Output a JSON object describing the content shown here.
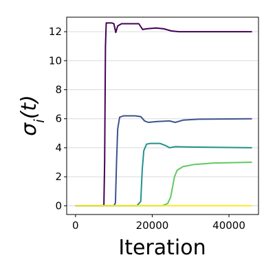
{
  "chart_data": {
    "type": "line",
    "title": "",
    "xlabel": "Iteration",
    "ylabel": "σ_i(t)",
    "xlim": [
      -2300,
      47700
    ],
    "ylim": [
      -0.6,
      13.0
    ],
    "xticks": [
      0,
      20000,
      40000
    ],
    "xtick_labels": [
      "0",
      "20000",
      "40000"
    ],
    "yticks": [
      0,
      2,
      4,
      6,
      8,
      10,
      12
    ],
    "ytick_labels": [
      "0",
      "2",
      "4",
      "6",
      "8",
      "10",
      "12"
    ],
    "grid": {
      "y": true,
      "x": false
    },
    "series": [
      {
        "color": "#440154",
        "points": [
          [
            0,
            0
          ],
          [
            7000,
            0
          ],
          [
            7400,
            0.05
          ],
          [
            7600,
            3
          ],
          [
            7800,
            11
          ],
          [
            8000,
            12.6
          ],
          [
            9500,
            12.6
          ],
          [
            10000,
            12.55
          ],
          [
            10500,
            11.95
          ],
          [
            11000,
            12.4
          ],
          [
            12000,
            12.55
          ],
          [
            16500,
            12.55
          ],
          [
            17500,
            12.15
          ],
          [
            18500,
            12.2
          ],
          [
            21000,
            12.25
          ],
          [
            23000,
            12.2
          ],
          [
            25000,
            12.05
          ],
          [
            27000,
            12.0
          ],
          [
            46000,
            12.0
          ]
        ]
      },
      {
        "color": "#3b528b",
        "points": [
          [
            0,
            0
          ],
          [
            10000,
            0
          ],
          [
            10400,
            0.2
          ],
          [
            10700,
            3
          ],
          [
            11000,
            5.3
          ],
          [
            11500,
            6.1
          ],
          [
            12500,
            6.2
          ],
          [
            15500,
            6.2
          ],
          [
            17000,
            6.15
          ],
          [
            18000,
            5.85
          ],
          [
            19000,
            5.75
          ],
          [
            21000,
            5.8
          ],
          [
            24500,
            5.85
          ],
          [
            26000,
            5.75
          ],
          [
            28000,
            5.9
          ],
          [
            32000,
            5.97
          ],
          [
            46000,
            6.0
          ]
        ]
      },
      {
        "color": "#21918c",
        "points": [
          [
            0,
            0
          ],
          [
            16000,
            0
          ],
          [
            17000,
            0.3
          ],
          [
            17400,
            2.5
          ],
          [
            17800,
            3.8
          ],
          [
            18500,
            4.25
          ],
          [
            19500,
            4.3
          ],
          [
            22000,
            4.3
          ],
          [
            23500,
            4.15
          ],
          [
            24500,
            4.0
          ],
          [
            26000,
            4.07
          ],
          [
            30000,
            4.05
          ],
          [
            46000,
            4.0
          ]
        ]
      },
      {
        "color": "#5ec962",
        "points": [
          [
            0,
            0
          ],
          [
            22500,
            0
          ],
          [
            24000,
            0.15
          ],
          [
            24800,
            0.6
          ],
          [
            25300,
            1.3
          ],
          [
            25800,
            2.0
          ],
          [
            26500,
            2.45
          ],
          [
            28000,
            2.7
          ],
          [
            31000,
            2.85
          ],
          [
            36000,
            2.95
          ],
          [
            46000,
            3.0
          ]
        ]
      },
      {
        "color": "#fde725",
        "points": [
          [
            0,
            0
          ],
          [
            46000,
            0
          ]
        ]
      }
    ]
  }
}
